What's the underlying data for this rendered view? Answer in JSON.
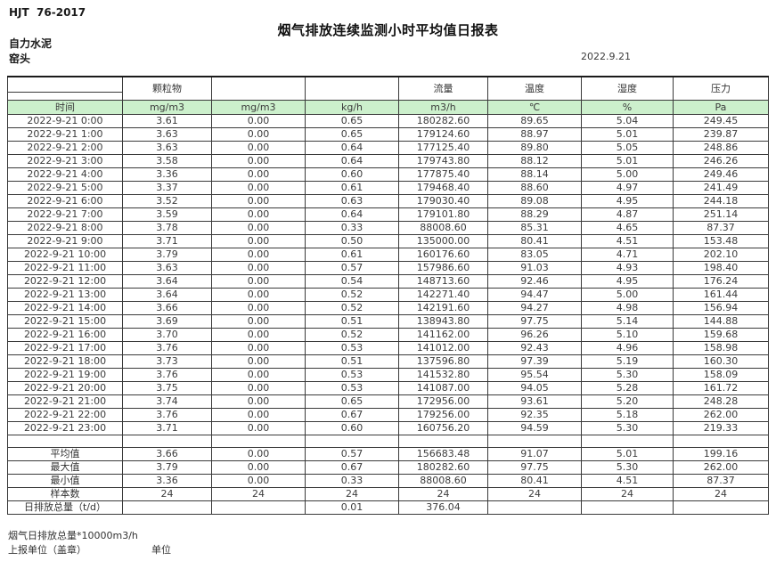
{
  "header": {
    "standard_no": "HJT  76-2017",
    "title": "烟气排放连续监测小时平均值日报表",
    "company": "自力水泥",
    "station": "窑头",
    "date": "2022.9.21"
  },
  "colors": {
    "unit_row_bg": "#ccf0cc",
    "border": "#3a3a3a"
  },
  "chart_data": {
    "type": "table",
    "title": "烟气排放连续监测小时平均值日报表",
    "group_headers": [
      "",
      "颗粒物",
      "",
      "",
      "流量",
      "温度",
      "湿度",
      "压力"
    ],
    "unit_row": [
      "时间",
      "mg/m3",
      "mg/m3",
      "kg/h",
      "m3/h",
      "℃",
      "%",
      "Pa"
    ],
    "rows": [
      [
        "2022-9-21 0:00",
        "3.61",
        "0.00",
        "0.65",
        "180282.60",
        "89.65",
        "5.04",
        "249.45"
      ],
      [
        "2022-9-21 1:00",
        "3.63",
        "0.00",
        "0.65",
        "179124.60",
        "88.97",
        "5.01",
        "239.87"
      ],
      [
        "2022-9-21 2:00",
        "3.63",
        "0.00",
        "0.64",
        "177125.40",
        "89.80",
        "5.05",
        "248.86"
      ],
      [
        "2022-9-21 3:00",
        "3.58",
        "0.00",
        "0.64",
        "179743.80",
        "88.12",
        "5.01",
        "246.26"
      ],
      [
        "2022-9-21 4:00",
        "3.36",
        "0.00",
        "0.60",
        "177875.40",
        "88.14",
        "5.00",
        "249.46"
      ],
      [
        "2022-9-21 5:00",
        "3.37",
        "0.00",
        "0.61",
        "179468.40",
        "88.60",
        "4.97",
        "241.49"
      ],
      [
        "2022-9-21 6:00",
        "3.52",
        "0.00",
        "0.63",
        "179030.40",
        "89.08",
        "4.95",
        "244.18"
      ],
      [
        "2022-9-21 7:00",
        "3.59",
        "0.00",
        "0.64",
        "179101.80",
        "88.29",
        "4.87",
        "251.14"
      ],
      [
        "2022-9-21 8:00",
        "3.78",
        "0.00",
        "0.33",
        "88008.60",
        "85.31",
        "4.65",
        "87.37"
      ],
      [
        "2022-9-21 9:00",
        "3.71",
        "0.00",
        "0.50",
        "135000.00",
        "80.41",
        "4.51",
        "153.48"
      ],
      [
        "2022-9-21 10:00",
        "3.79",
        "0.00",
        "0.61",
        "160176.60",
        "83.05",
        "4.71",
        "202.10"
      ],
      [
        "2022-9-21 11:00",
        "3.63",
        "0.00",
        "0.57",
        "157986.60",
        "91.03",
        "4.93",
        "198.40"
      ],
      [
        "2022-9-21 12:00",
        "3.64",
        "0.00",
        "0.54",
        "148713.60",
        "92.46",
        "4.95",
        "176.24"
      ],
      [
        "2022-9-21 13:00",
        "3.64",
        "0.00",
        "0.52",
        "142271.40",
        "94.47",
        "5.00",
        "161.44"
      ],
      [
        "2022-9-21 14:00",
        "3.66",
        "0.00",
        "0.52",
        "142191.60",
        "94.27",
        "4.98",
        "156.94"
      ],
      [
        "2022-9-21 15:00",
        "3.69",
        "0.00",
        "0.51",
        "138943.80",
        "97.75",
        "5.14",
        "144.88"
      ],
      [
        "2022-9-21 16:00",
        "3.70",
        "0.00",
        "0.52",
        "141162.00",
        "96.26",
        "5.10",
        "159.68"
      ],
      [
        "2022-9-21 17:00",
        "3.76",
        "0.00",
        "0.53",
        "141012.00",
        "92.43",
        "4.96",
        "158.98"
      ],
      [
        "2022-9-21 18:00",
        "3.73",
        "0.00",
        "0.51",
        "137596.80",
        "97.39",
        "5.19",
        "160.30"
      ],
      [
        "2022-9-21 19:00",
        "3.76",
        "0.00",
        "0.53",
        "141532.80",
        "95.54",
        "5.30",
        "158.09"
      ],
      [
        "2022-9-21 20:00",
        "3.75",
        "0.00",
        "0.53",
        "141087.00",
        "94.05",
        "5.28",
        "161.72"
      ],
      [
        "2022-9-21 21:00",
        "3.74",
        "0.00",
        "0.65",
        "172956.00",
        "93.61",
        "5.20",
        "248.28"
      ],
      [
        "2022-9-21 22:00",
        "3.76",
        "0.00",
        "0.67",
        "179256.00",
        "92.35",
        "5.18",
        "262.00"
      ],
      [
        "2022-9-21 23:00",
        "3.71",
        "0.00",
        "0.60",
        "160756.20",
        "94.59",
        "5.30",
        "219.33"
      ]
    ],
    "summary": [
      {
        "label": "平均值",
        "values": [
          "3.66",
          "0.00",
          "0.57",
          "156683.48",
          "91.07",
          "5.01",
          "199.16"
        ]
      },
      {
        "label": "最大值",
        "values": [
          "3.79",
          "0.00",
          "0.67",
          "180282.60",
          "97.75",
          "5.30",
          "262.00"
        ]
      },
      {
        "label": "最小值",
        "values": [
          "3.36",
          "0.00",
          "0.33",
          "88008.60",
          "80.41",
          "4.51",
          "87.37"
        ]
      },
      {
        "label": "样本数",
        "values": [
          "24",
          "24",
          "24",
          "24",
          "24",
          "24",
          "24"
        ]
      },
      {
        "label": "日排放总量（t/d）",
        "values": [
          "",
          "",
          "0.01",
          "376.04",
          "",
          "",
          ""
        ]
      }
    ]
  },
  "footer": {
    "note": "烟气日排放总量*10000m3/h",
    "report_unit": "上报单位（盖章）",
    "unit_label": "单位"
  }
}
